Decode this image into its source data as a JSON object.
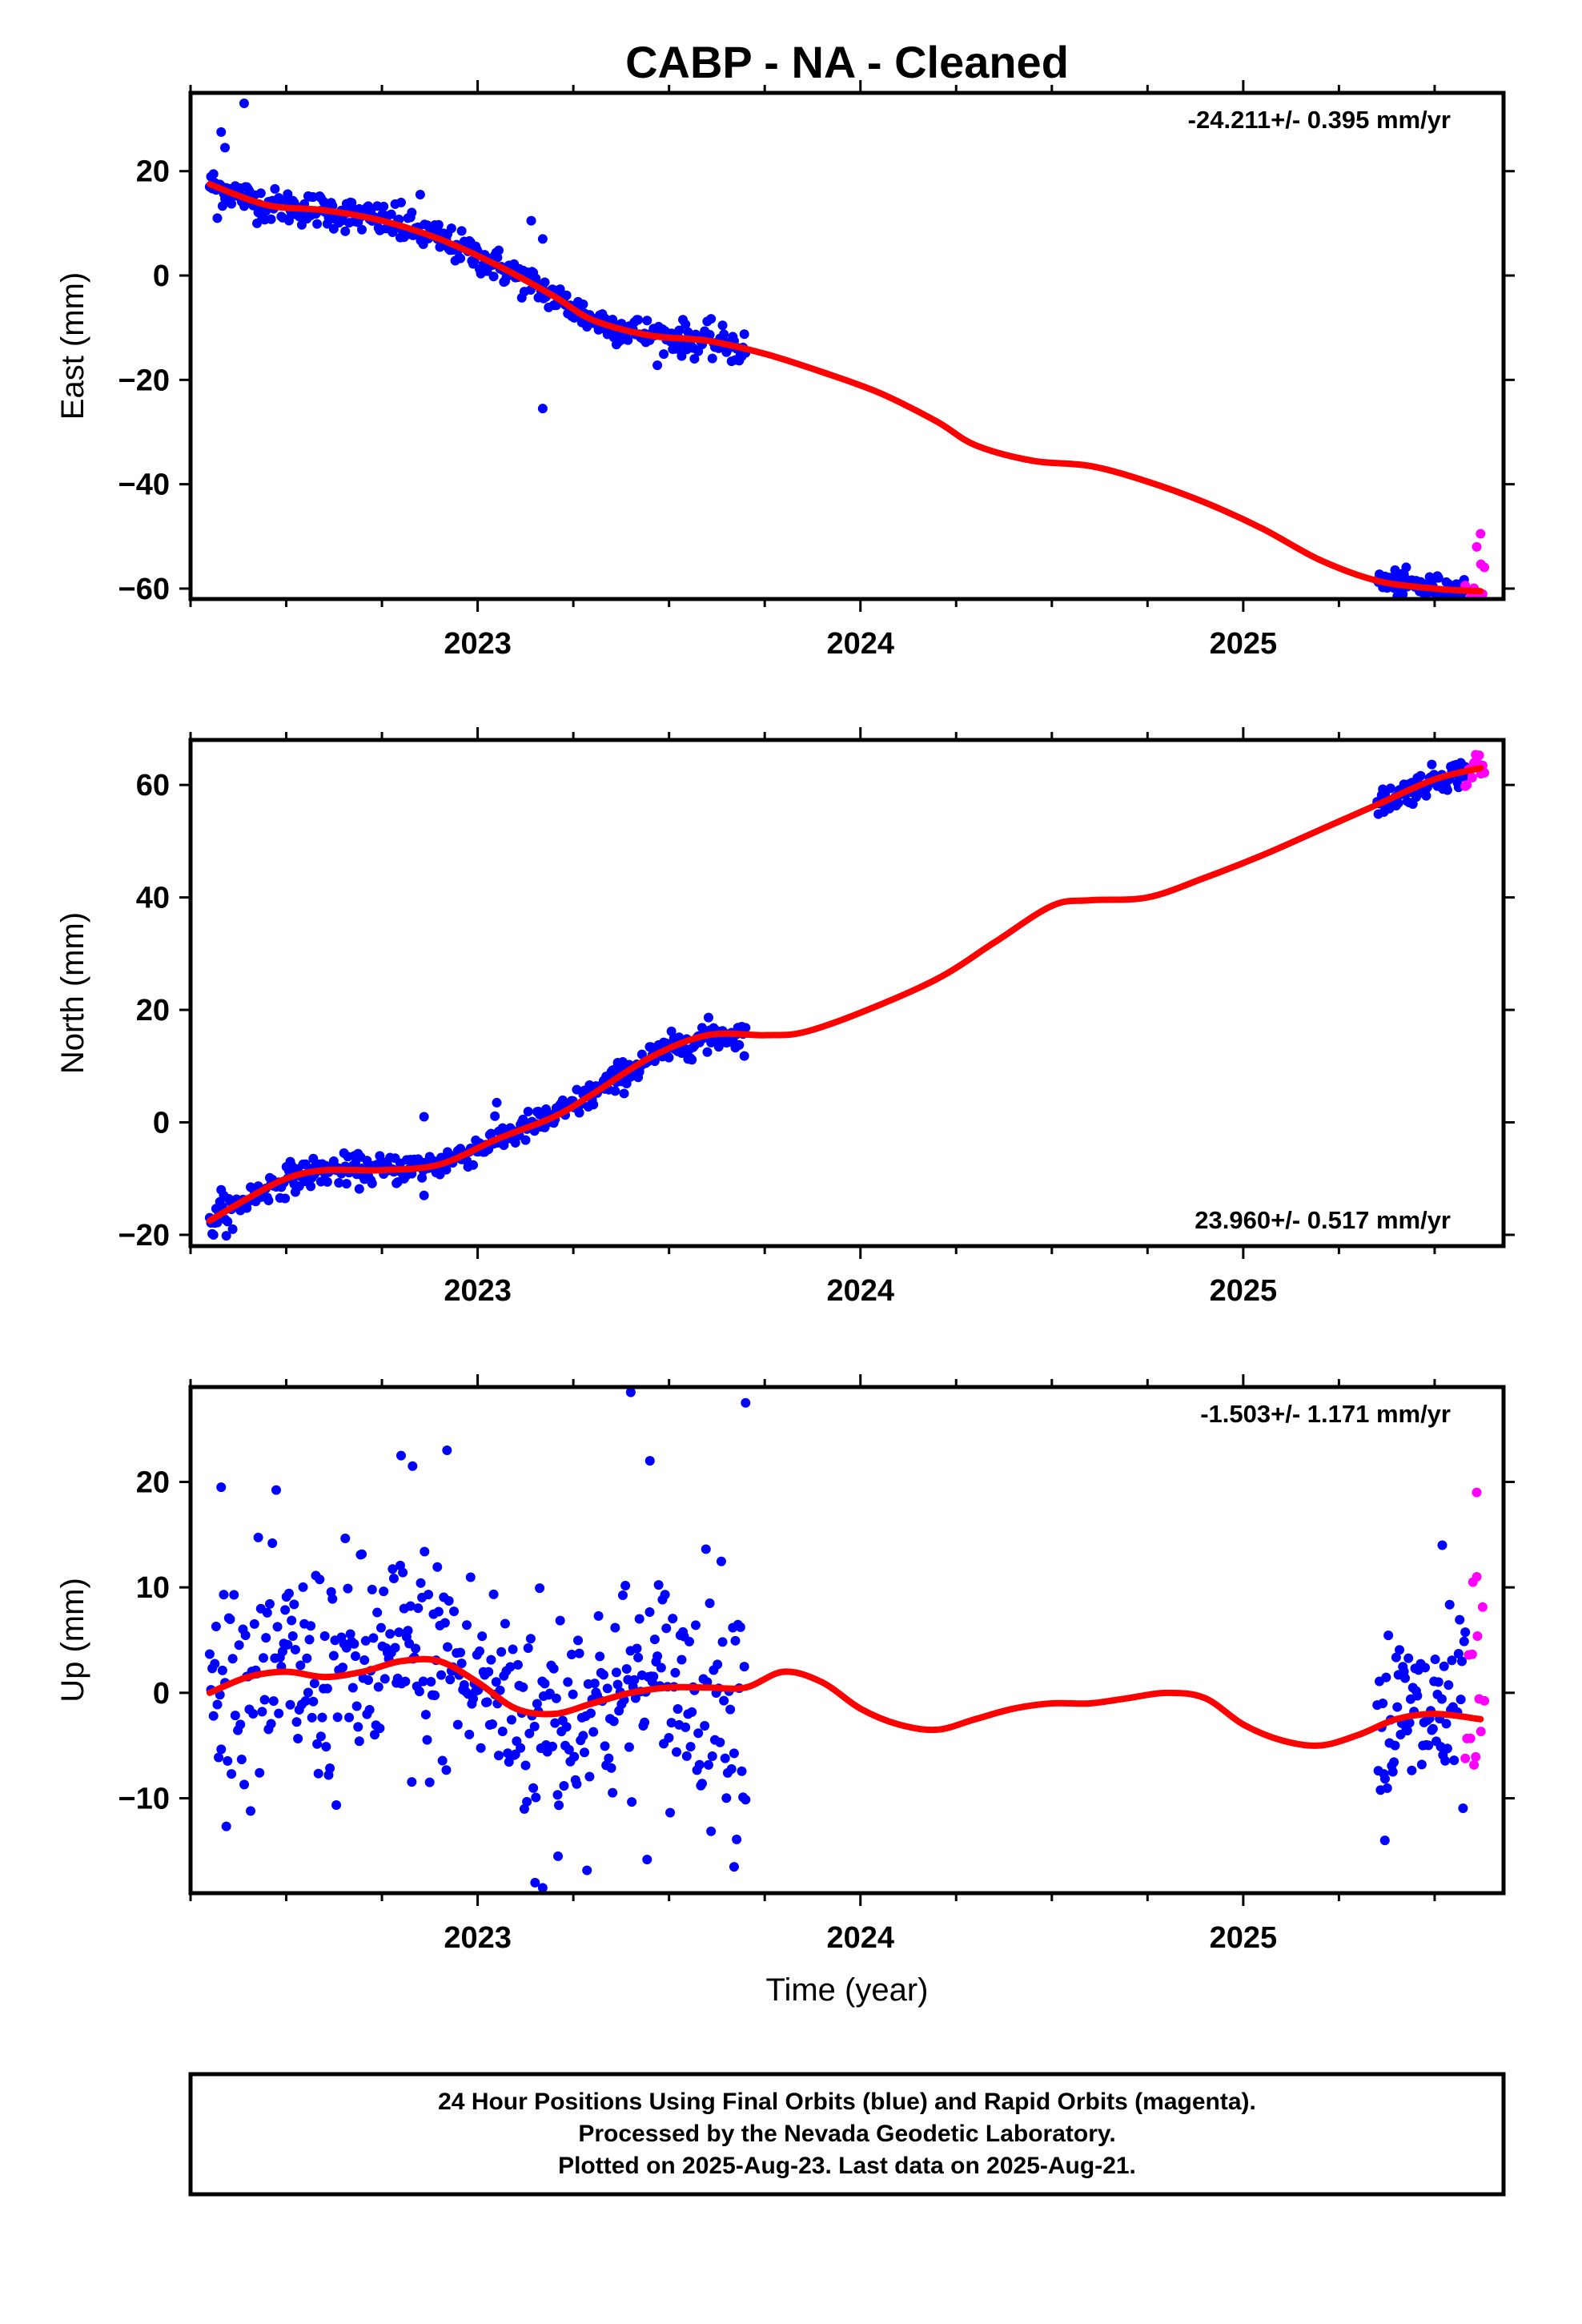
{
  "title": "CABP  - NA - Cleaned",
  "footer": {
    "line1": "24 Hour Positions Using Final Orbits (blue) and Rapid Orbits (magenta).",
    "line2": "Processed by the Nevada Geodetic Laboratory.",
    "line3": "Plotted on 2025-Aug-23. Last data on 2025-Aug-21."
  },
  "colors": {
    "final_orbits": "#0000ff",
    "rapid_orbits": "#ff00ff",
    "fit_line": "#ff0000",
    "frame": "#000000"
  },
  "chart_data": [
    {
      "type": "scatter",
      "component": "east",
      "ylabel": "East (mm)",
      "xlabel": "",
      "rate_label": "-24.211+/- 0.395 mm/yr",
      "rate_position": "top-right",
      "xlim": [
        2022.25,
        2025.68
      ],
      "ylim": [
        -62,
        35
      ],
      "yticks": [
        20,
        0,
        -20,
        -40,
        -60
      ],
      "xticks": [
        2023,
        2024,
        2025
      ],
      "grid": false,
      "fit": [
        [
          2022.3,
          17.5
        ],
        [
          2022.45,
          13.5
        ],
        [
          2022.6,
          12.5
        ],
        [
          2022.75,
          10.5
        ],
        [
          2022.9,
          7.0
        ],
        [
          2023.05,
          2.0
        ],
        [
          2023.2,
          -4.0
        ],
        [
          2023.3,
          -8.5
        ],
        [
          2023.45,
          -11.5
        ],
        [
          2023.6,
          -12.5
        ],
        [
          2023.75,
          -15.0
        ],
        [
          2023.9,
          -18.5
        ],
        [
          2024.05,
          -22.5
        ],
        [
          2024.2,
          -28.0
        ],
        [
          2024.3,
          -32.5
        ],
        [
          2024.45,
          -35.5
        ],
        [
          2024.6,
          -36.5
        ],
        [
          2024.75,
          -39.5
        ],
        [
          2024.9,
          -43.5
        ],
        [
          2025.05,
          -48.5
        ],
        [
          2025.2,
          -54.5
        ],
        [
          2025.35,
          -58.5
        ],
        [
          2025.5,
          -60.0
        ],
        [
          2025.62,
          -60.5
        ]
      ],
      "final_segments": [
        {
          "start": 2022.3,
          "end": 2023.7,
          "count": 420,
          "scatter": 1.6
        },
        {
          "start": 2025.35,
          "end": 2025.58,
          "count": 80,
          "scatter": 1.2
        }
      ],
      "rapid_segment": {
        "start": 2025.58,
        "end": 2025.63,
        "count": 12,
        "scatter": 3.0
      },
      "outliers": [
        [
          2022.33,
          27.5
        ],
        [
          2022.39,
          33.0
        ],
        [
          2022.34,
          24.5
        ],
        [
          2022.32,
          11.0
        ],
        [
          2023.17,
          -25.5
        ],
        [
          2023.14,
          10.5
        ],
        [
          2023.17,
          7.0
        ],
        [
          2022.85,
          15.5
        ],
        [
          2022.8,
          14.0
        ],
        [
          2025.62,
          -49.5
        ],
        [
          2025.61,
          -52.0
        ],
        [
          2025.62,
          -61.0
        ]
      ]
    },
    {
      "type": "scatter",
      "component": "north",
      "ylabel": "North (mm)",
      "xlabel": "",
      "rate_label": "23.960+/- 0.517 mm/yr",
      "rate_position": "bottom-right",
      "xlim": [
        2022.25,
        2025.68
      ],
      "ylim": [
        -22,
        68
      ],
      "yticks": [
        60,
        40,
        20,
        0,
        -20
      ],
      "xticks": [
        2023,
        2024,
        2025
      ],
      "grid": false,
      "fit": [
        [
          2022.3,
          -17.5
        ],
        [
          2022.4,
          -13.5
        ],
        [
          2022.5,
          -10.0
        ],
        [
          2022.6,
          -8.5
        ],
        [
          2022.75,
          -8.5
        ],
        [
          2022.9,
          -7.5
        ],
        [
          2023.05,
          -3.0
        ],
        [
          2023.2,
          1.0
        ],
        [
          2023.3,
          5.0
        ],
        [
          2023.45,
          11.5
        ],
        [
          2023.6,
          15.5
        ],
        [
          2023.75,
          15.5
        ],
        [
          2023.85,
          16.0
        ],
        [
          2024.0,
          19.5
        ],
        [
          2024.2,
          25.5
        ],
        [
          2024.35,
          32.0
        ],
        [
          2024.5,
          38.5
        ],
        [
          2024.6,
          39.5
        ],
        [
          2024.75,
          40.0
        ],
        [
          2024.9,
          43.5
        ],
        [
          2025.05,
          47.5
        ],
        [
          2025.2,
          52.0
        ],
        [
          2025.35,
          56.5
        ],
        [
          2025.5,
          61.0
        ],
        [
          2025.62,
          63.0
        ]
      ],
      "final_segments": [
        {
          "start": 2022.3,
          "end": 2023.7,
          "count": 420,
          "scatter": 1.3
        },
        {
          "start": 2025.35,
          "end": 2025.58,
          "count": 80,
          "scatter": 1.2
        }
      ],
      "rapid_segment": {
        "start": 2025.58,
        "end": 2025.63,
        "count": 12,
        "scatter": 1.8
      },
      "outliers": [
        [
          2022.31,
          -20.0
        ],
        [
          2022.36,
          -19.0
        ],
        [
          2022.33,
          -12.0
        ],
        [
          2022.86,
          1.0
        ],
        [
          2022.86,
          -13.0
        ],
        [
          2023.05,
          3.5
        ],
        [
          2023.6,
          12.5
        ]
      ]
    },
    {
      "type": "scatter",
      "component": "up",
      "ylabel": "Up (mm)",
      "xlabel": "Time (year)",
      "rate_label": "-1.503+/- 1.171 mm/yr",
      "rate_position": "top-right",
      "xlim": [
        2022.25,
        2025.68
      ],
      "ylim": [
        -19,
        29
      ],
      "yticks": [
        20,
        10,
        0,
        -10
      ],
      "xticks": [
        2023,
        2024,
        2025
      ],
      "grid": false,
      "fit": [
        [
          2022.3,
          0.0
        ],
        [
          2022.4,
          1.5
        ],
        [
          2022.5,
          2.0
        ],
        [
          2022.6,
          1.5
        ],
        [
          2022.7,
          2.0
        ],
        [
          2022.8,
          3.0
        ],
        [
          2022.9,
          3.0
        ],
        [
          2023.0,
          1.0
        ],
        [
          2023.1,
          -1.5
        ],
        [
          2023.2,
          -2.0
        ],
        [
          2023.3,
          -1.0
        ],
        [
          2023.4,
          0.0
        ],
        [
          2023.5,
          0.5
        ],
        [
          2023.6,
          0.5
        ],
        [
          2023.7,
          0.5
        ],
        [
          2023.8,
          2.0
        ],
        [
          2023.9,
          1.0
        ],
        [
          2024.0,
          -1.5
        ],
        [
          2024.1,
          -3.0
        ],
        [
          2024.2,
          -3.5
        ],
        [
          2024.3,
          -2.5
        ],
        [
          2024.4,
          -1.5
        ],
        [
          2024.5,
          -1.0
        ],
        [
          2024.6,
          -1.0
        ],
        [
          2024.7,
          -0.5
        ],
        [
          2024.8,
          0.0
        ],
        [
          2024.9,
          -0.5
        ],
        [
          2025.0,
          -3.0
        ],
        [
          2025.1,
          -4.5
        ],
        [
          2025.2,
          -5.0
        ],
        [
          2025.3,
          -4.0
        ],
        [
          2025.4,
          -2.5
        ],
        [
          2025.5,
          -2.0
        ],
        [
          2025.62,
          -2.5
        ]
      ],
      "final_segments": [
        {
          "start": 2022.3,
          "end": 2023.7,
          "count": 420,
          "scatter": 5.5
        },
        {
          "start": 2025.35,
          "end": 2025.58,
          "count": 80,
          "scatter": 4.5
        }
      ],
      "rapid_segment": {
        "start": 2025.58,
        "end": 2025.63,
        "count": 12,
        "scatter": 4.5
      },
      "outliers": [
        [
          2023.4,
          28.5
        ],
        [
          2023.7,
          27.5
        ],
        [
          2023.45,
          22.0
        ],
        [
          2022.8,
          22.5
        ],
        [
          2022.83,
          21.5
        ],
        [
          2022.92,
          23.0
        ],
        [
          2023.15,
          -18.0
        ],
        [
          2023.17,
          -18.5
        ],
        [
          2023.21,
          -15.5
        ],
        [
          2023.67,
          -16.5
        ],
        [
          2022.33,
          19.5
        ],
        [
          2025.37,
          -14.0
        ],
        [
          2025.52,
          14.0
        ],
        [
          2025.61,
          19.0
        ],
        [
          2025.6,
          10.5
        ],
        [
          2025.61,
          11.0
        ]
      ]
    }
  ]
}
